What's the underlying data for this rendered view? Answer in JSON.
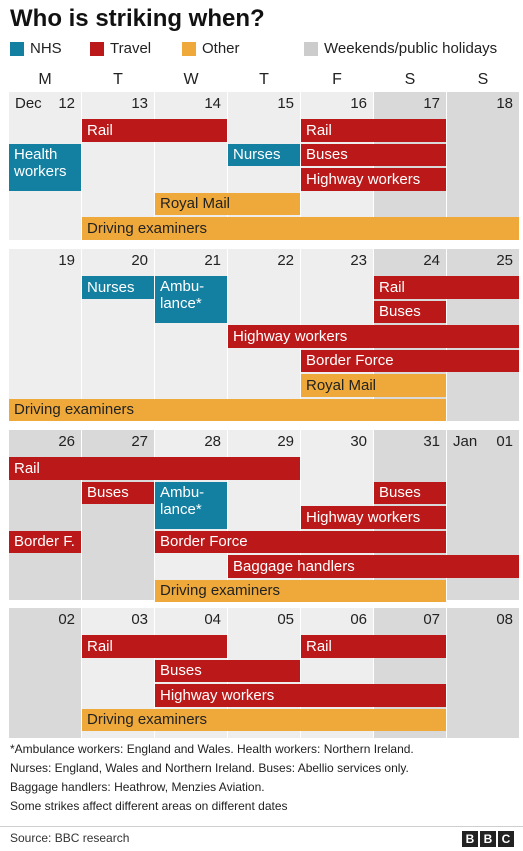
{
  "title": "Who is striking when?",
  "legend": [
    {
      "label": "NHS",
      "color": "#1380a1"
    },
    {
      "label": "Travel",
      "color": "#bb1919"
    },
    {
      "label": "Other",
      "color": "#eea93a"
    },
    {
      "label": "Weekends/public holidays",
      "color": "#cccccc"
    }
  ],
  "day_headers": [
    "M",
    "T",
    "W",
    "T",
    "F",
    "S",
    "S"
  ],
  "colors": {
    "weekday_cell": "#eeeeee",
    "holiday_cell": "#d9d9d9",
    "nhs": "#1380a1",
    "travel": "#bb1919",
    "other": "#eea93a"
  },
  "chart_data": {
    "type": "table",
    "weeks": [
      {
        "days": [
          {
            "num": "12",
            "month": "Dec",
            "holiday": false
          },
          {
            "num": "13",
            "holiday": false
          },
          {
            "num": "14",
            "holiday": false
          },
          {
            "num": "15",
            "holiday": false
          },
          {
            "num": "16",
            "holiday": false
          },
          {
            "num": "17",
            "holiday": true
          },
          {
            "num": "18",
            "holiday": true
          }
        ],
        "strikes": [
          {
            "label": "Rail",
            "category": "travel",
            "start": 1,
            "end": 2,
            "row": 0
          },
          {
            "label": "Rail",
            "category": "travel",
            "start": 4,
            "end": 5,
            "row": 0
          },
          {
            "label": "Health\nworkers",
            "category": "nhs",
            "start": 0,
            "end": 0,
            "row": 1,
            "rows": 2
          },
          {
            "label": "Nurses",
            "category": "nhs",
            "start": 3,
            "end": 3,
            "row": 1
          },
          {
            "label": "Buses",
            "category": "travel",
            "start": 4,
            "end": 5,
            "row": 1
          },
          {
            "label": "Highway workers",
            "category": "travel",
            "start": 4,
            "end": 5,
            "row": 2
          },
          {
            "label": "Royal Mail",
            "category": "other",
            "start": 2,
            "end": 3,
            "row": 3
          },
          {
            "label": "Driving examiners",
            "category": "other",
            "start": 1,
            "end": 6,
            "row": 4
          }
        ]
      },
      {
        "days": [
          {
            "num": "19",
            "holiday": false
          },
          {
            "num": "20",
            "holiday": false
          },
          {
            "num": "21",
            "holiday": false
          },
          {
            "num": "22",
            "holiday": false
          },
          {
            "num": "23",
            "holiday": false
          },
          {
            "num": "24",
            "holiday": true
          },
          {
            "num": "25",
            "holiday": true
          }
        ],
        "strikes": [
          {
            "label": "Nurses",
            "category": "nhs",
            "start": 1,
            "end": 1,
            "row": 0
          },
          {
            "label": "Ambu-\nlance*",
            "category": "nhs",
            "start": 2,
            "end": 2,
            "row": 0,
            "rows": 2
          },
          {
            "label": "Rail",
            "category": "travel",
            "start": 5,
            "end": 6,
            "row": 0
          },
          {
            "label": "Buses",
            "category": "travel",
            "start": 5,
            "end": 5,
            "row": 1
          },
          {
            "label": "Highway workers",
            "category": "travel",
            "start": 3,
            "end": 6,
            "row": 2
          },
          {
            "label": "Border Force",
            "category": "travel",
            "start": 4,
            "end": 6,
            "row": 3
          },
          {
            "label": "Royal Mail",
            "category": "other",
            "start": 4,
            "end": 5,
            "row": 4
          },
          {
            "label": "Driving examiners",
            "category": "other",
            "start": 0,
            "end": 5,
            "row": 5
          }
        ]
      },
      {
        "days": [
          {
            "num": "26",
            "holiday": true
          },
          {
            "num": "27",
            "holiday": true
          },
          {
            "num": "28",
            "holiday": false
          },
          {
            "num": "29",
            "holiday": false
          },
          {
            "num": "30",
            "holiday": false
          },
          {
            "num": "31",
            "holiday": true
          },
          {
            "num": "01",
            "month": "Jan",
            "holiday": true
          }
        ],
        "strikes": [
          {
            "label": "Rail",
            "category": "travel",
            "start": 0,
            "end": 3,
            "row": 0
          },
          {
            "label": "Buses",
            "category": "travel",
            "start": 1,
            "end": 1,
            "row": 1
          },
          {
            "label": "Ambu-\nlance*",
            "category": "nhs",
            "start": 2,
            "end": 2,
            "row": 1,
            "rows": 2
          },
          {
            "label": "Buses",
            "category": "travel",
            "start": 5,
            "end": 5,
            "row": 1
          },
          {
            "label": "Highway workers",
            "category": "travel",
            "start": 4,
            "end": 5,
            "row": 2
          },
          {
            "label": "Border F.",
            "category": "travel",
            "start": 0,
            "end": 0,
            "row": 3
          },
          {
            "label": "Border Force",
            "category": "travel",
            "start": 2,
            "end": 5,
            "row": 3
          },
          {
            "label": "Baggage handlers",
            "category": "travel",
            "start": 3,
            "end": 6,
            "row": 4
          },
          {
            "label": "Driving examiners",
            "category": "other",
            "start": 2,
            "end": 5,
            "row": 5
          }
        ]
      },
      {
        "days": [
          {
            "num": "02",
            "holiday": true
          },
          {
            "num": "03",
            "holiday": false
          },
          {
            "num": "04",
            "holiday": false
          },
          {
            "num": "05",
            "holiday": false
          },
          {
            "num": "06",
            "holiday": false
          },
          {
            "num": "07",
            "holiday": true
          },
          {
            "num": "08",
            "holiday": true
          }
        ],
        "strikes": [
          {
            "label": "Rail",
            "category": "travel",
            "start": 1,
            "end": 2,
            "row": 0
          },
          {
            "label": "Rail",
            "category": "travel",
            "start": 4,
            "end": 5,
            "row": 0
          },
          {
            "label": "Buses",
            "category": "travel",
            "start": 2,
            "end": 3,
            "row": 1
          },
          {
            "label": "Highway workers",
            "category": "travel",
            "start": 2,
            "end": 5,
            "row": 2
          },
          {
            "label": "Driving examiners",
            "category": "other",
            "start": 1,
            "end": 5,
            "row": 3
          }
        ]
      }
    ]
  },
  "notes": [
    "*Ambulance workers: England and Wales. Health workers: Northern Ireland.",
    "Nurses: England, Wales and Northern Ireland. Buses: Abellio services only.",
    "Baggage handlers: Heathrow, Menzies Aviation.",
    "Some strikes affect different areas on different dates"
  ],
  "source": "Source: BBC research",
  "logo": [
    "B",
    "B",
    "C"
  ]
}
